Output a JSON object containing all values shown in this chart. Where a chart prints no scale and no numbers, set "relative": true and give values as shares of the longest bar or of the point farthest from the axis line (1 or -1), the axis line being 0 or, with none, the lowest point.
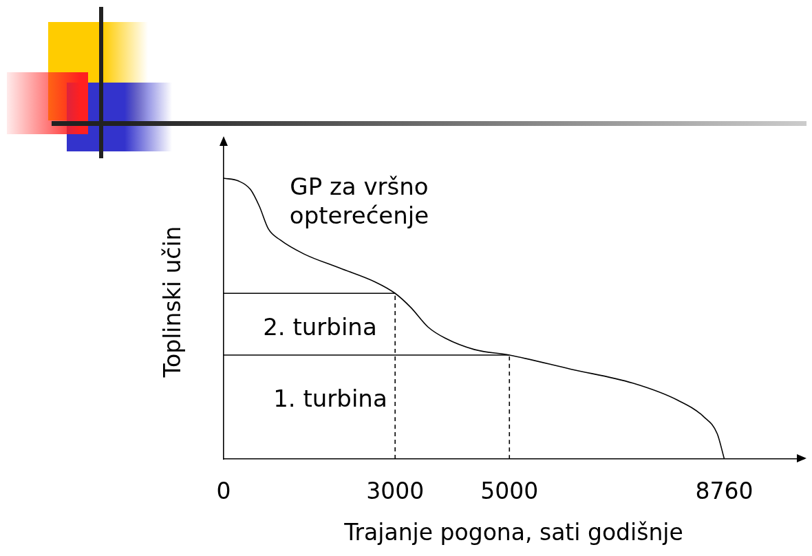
{
  "chart_data": {
    "type": "line",
    "relative": true,
    "xlabel": "Trajanje pogona, sati godišnje",
    "ylabel": "Toplinski učin",
    "xlim": [
      0,
      10150
    ],
    "xticks": [
      0,
      3000,
      5000,
      8760
    ],
    "grid": false,
    "legend": false,
    "marker": "none",
    "line_style": "solid",
    "series": [
      {
        "color": "#000000",
        "x": [
          0,
          260,
          469,
          625,
          781,
          990,
          1406,
          2031,
          2656,
          3000,
          3273,
          3576,
          3879,
          4384,
          5000,
          6072,
          7160,
          7937,
          8403,
          8636,
          8760
        ],
        "values": [
          1.0,
          0.99,
          0.96,
          0.9,
          0.82,
          0.78,
          0.73,
          0.68,
          0.63,
          0.59,
          0.54,
          0.47,
          0.43,
          0.39,
          0.37,
          0.32,
          0.27,
          0.21,
          0.15,
          0.09,
          0
        ]
      },
      {
        "color": "#000000",
        "x": [
          0,
          3000
        ],
        "values": [
          0.59,
          0.59
        ]
      },
      {
        "color": "#000000",
        "x": [
          0,
          5000
        ],
        "values": [
          0.37,
          0.37
        ]
      },
      {
        "color": "#000000",
        "x": [
          3000,
          3000
        ],
        "values": [
          0,
          0.59
        ],
        "line_style": "dashed"
      },
      {
        "color": "#000000",
        "x": [
          5000,
          5000
        ],
        "values": [
          0,
          0.37
        ],
        "line_style": "dashed"
      }
    ],
    "annotations": [
      "GP za vršno\nopterećenje",
      "2. turbina",
      "1. turbina"
    ]
  }
}
